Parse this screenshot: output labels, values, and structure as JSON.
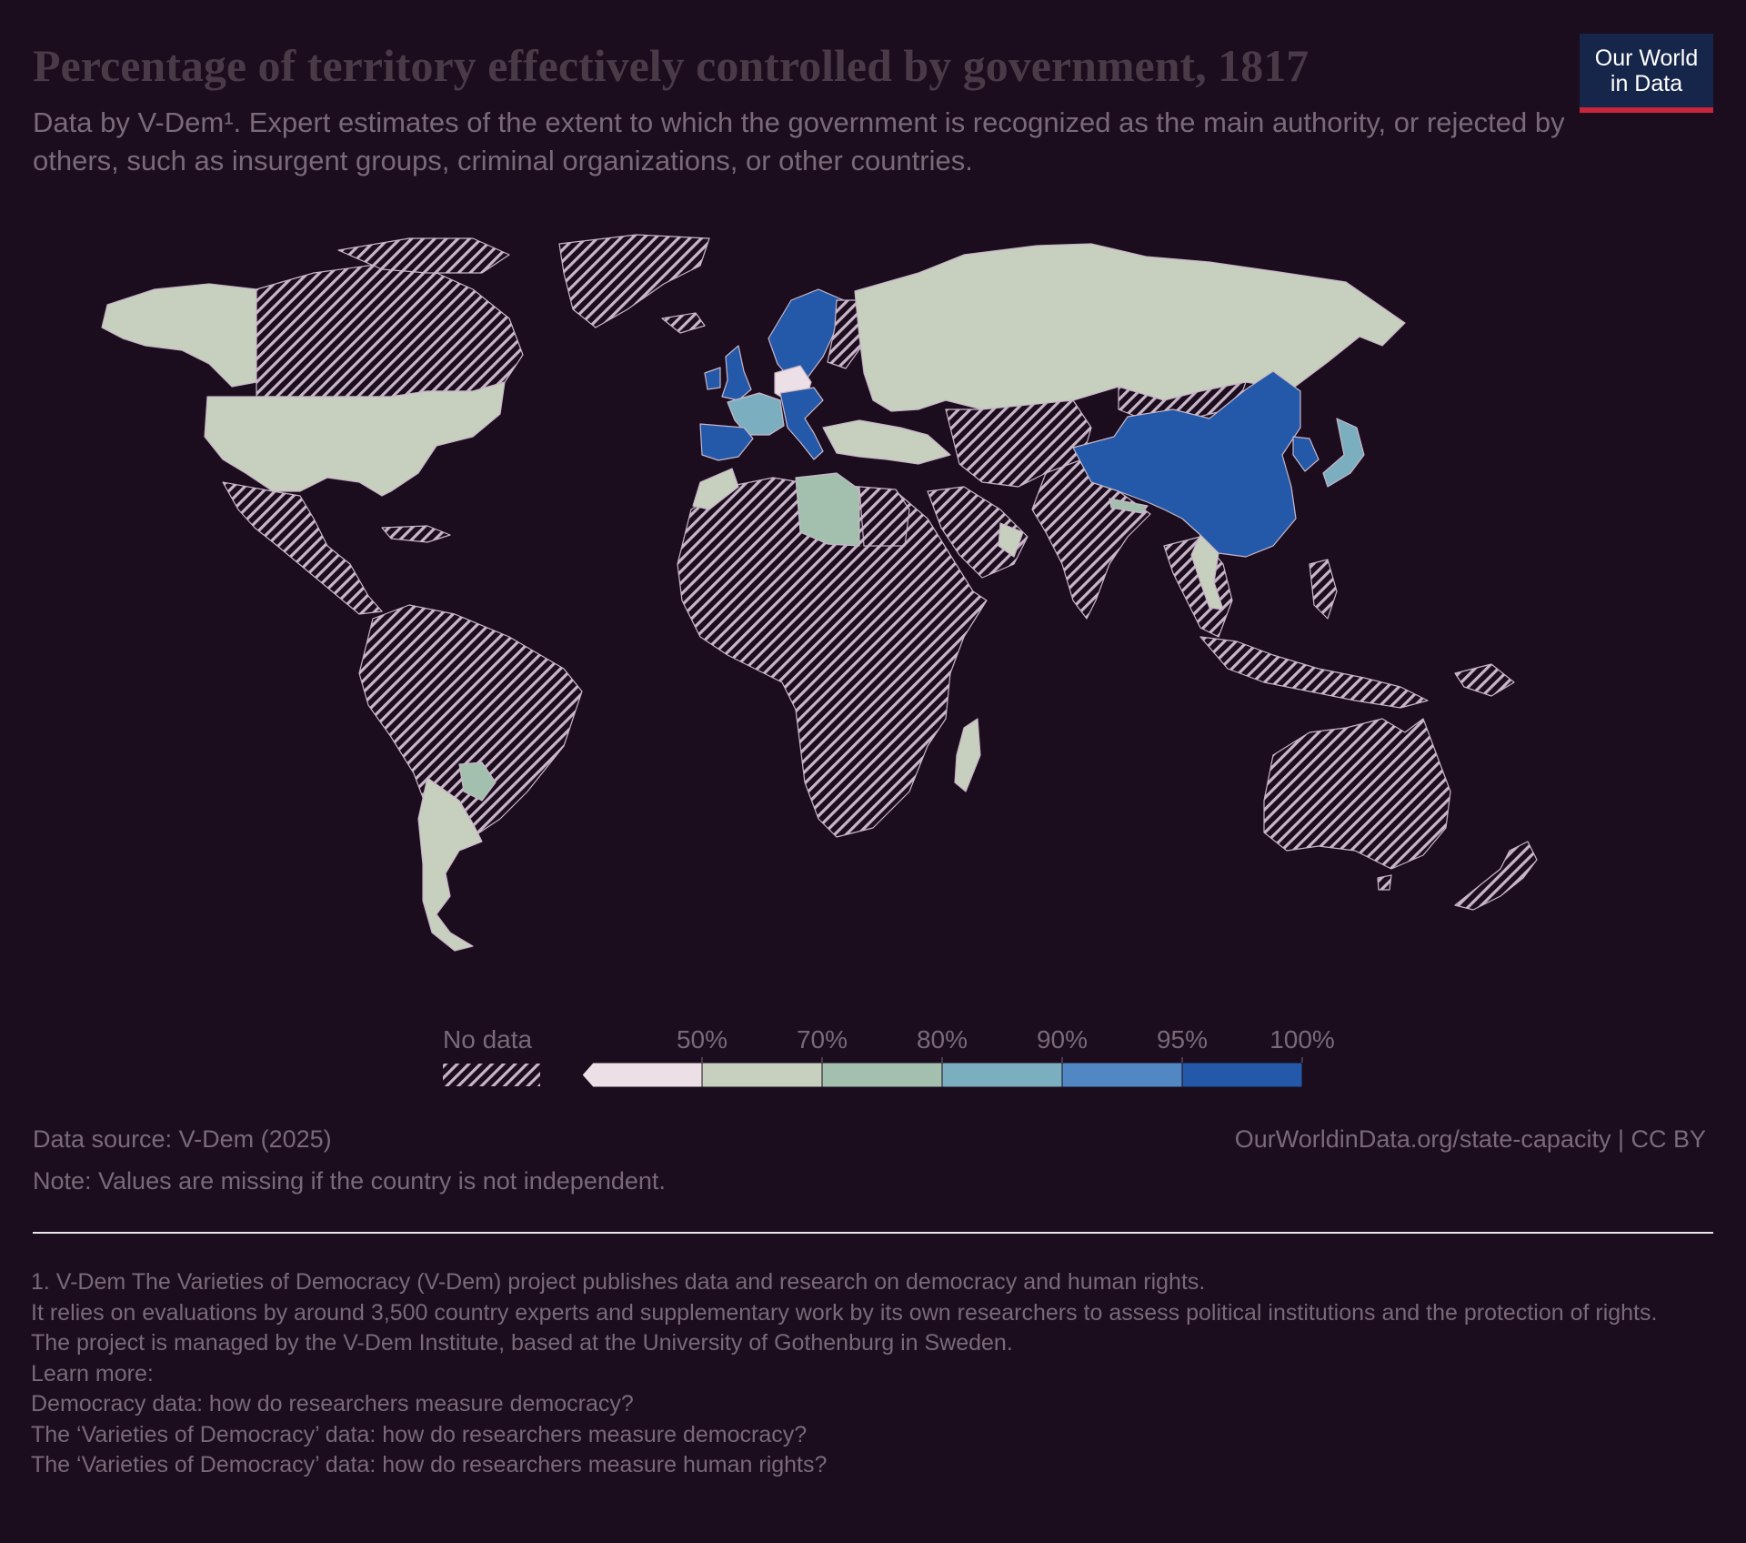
{
  "header": {
    "title": "Percentage of territory effectively controlled by government, 1817",
    "subtitle": "Data by V-Dem¹. Expert estimates of the extent to which the government is recognized as the main authority, or rejected by others, such as insurgent groups, criminal organizations, or other countries.",
    "logo_line1": "Our World",
    "logo_line2": "in Data"
  },
  "colors": {
    "background": "#1b0c1e",
    "no_data_hatch": "#c9b6c9",
    "scale": [
      "#ece0e6",
      "#c7cfbe",
      "#a3c0ae",
      "#7bafbf",
      "#5188c4",
      "#2359a8"
    ]
  },
  "chart_data": {
    "type": "choropleth",
    "year": 1817,
    "unit": "%",
    "legend": {
      "no_data_label": "No data",
      "bins": [
        {
          "from": null,
          "to": 50,
          "color": "#ece0e6"
        },
        {
          "from": 50,
          "to": 70,
          "color": "#c7cfbe"
        },
        {
          "from": 70,
          "to": 80,
          "color": "#a3c0ae"
        },
        {
          "from": 80,
          "to": 90,
          "color": "#7bafbf"
        },
        {
          "from": 90,
          "to": 95,
          "color": "#5188c4"
        },
        {
          "from": 95,
          "to": 100,
          "color": "#2359a8"
        }
      ],
      "tick_labels": [
        "50%",
        "70%",
        "80%",
        "90%",
        "95%",
        "100%"
      ]
    }
  },
  "footer": {
    "source": "Data source: V-Dem (2025)",
    "link": "OurWorldinData.org/state-capacity | CC BY",
    "note": "Note: Values are missing if the country is not independent.",
    "footnotes": [
      "1. V-Dem The Varieties of Democracy (V-Dem) project publishes data and research on democracy and human rights.",
      "It relies on evaluations by around 3,500 country experts and supplementary work by its own researchers to assess political institutions and the protection of rights.",
      "The project is managed by the V-Dem Institute, based at the University of Gothenburg in Sweden.",
      "Learn more:",
      "Democracy data: how do researchers measure democracy?",
      "The ‘Varieties of Democracy’ data: how do researchers measure democracy?",
      "The ‘Varieties of Democracy’ data: how do researchers measure human rights?"
    ]
  }
}
